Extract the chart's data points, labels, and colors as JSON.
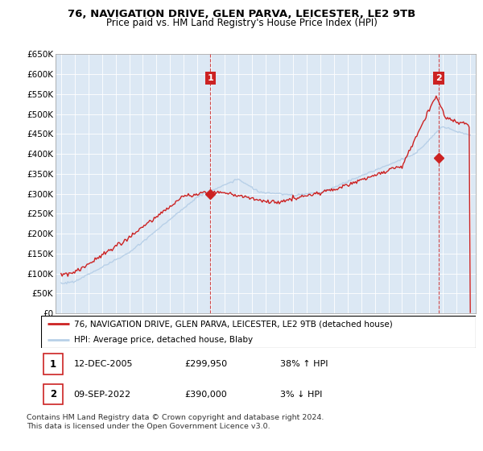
{
  "title": "76, NAVIGATION DRIVE, GLEN PARVA, LEICESTER, LE2 9TB",
  "subtitle": "Price paid vs. HM Land Registry's House Price Index (HPI)",
  "ylim": [
    0,
    650000
  ],
  "yticks": [
    0,
    50000,
    100000,
    150000,
    200000,
    250000,
    300000,
    350000,
    400000,
    450000,
    500000,
    550000,
    600000,
    650000
  ],
  "ytick_labels": [
    "£0",
    "£50K",
    "£100K",
    "£150K",
    "£200K",
    "£250K",
    "£300K",
    "£350K",
    "£400K",
    "£450K",
    "£500K",
    "£550K",
    "£600K",
    "£650K"
  ],
  "hpi_color": "#b8d0e8",
  "price_color": "#cc2222",
  "marker_color": "#cc2222",
  "vline_color": "#cc2222",
  "plot_bg_color": "#dce8f4",
  "background_color": "#ffffff",
  "grid_color": "#ffffff",
  "sale1_date": 2005.95,
  "sale1_price": 299950,
  "sale1_label": "1",
  "sale2_date": 2022.69,
  "sale2_price": 390000,
  "sale2_label": "2",
  "legend_line1": "76, NAVIGATION DRIVE, GLEN PARVA, LEICESTER, LE2 9TB (detached house)",
  "legend_line2": "HPI: Average price, detached house, Blaby",
  "table_row1": [
    "1",
    "12-DEC-2005",
    "£299,950",
    "38% ↑ HPI"
  ],
  "table_row2": [
    "2",
    "09-SEP-2022",
    "£390,000",
    "3% ↓ HPI"
  ],
  "footer1": "Contains HM Land Registry data © Crown copyright and database right 2024.",
  "footer2": "This data is licensed under the Open Government Licence v3.0.",
  "title_fontsize": 9.5,
  "subtitle_fontsize": 8.5,
  "tick_fontsize": 7.5,
  "legend_fontsize": 7.5,
  "table_fontsize": 8,
  "footer_fontsize": 6.8,
  "xlim_left": 1994.6,
  "xlim_right": 2025.4
}
